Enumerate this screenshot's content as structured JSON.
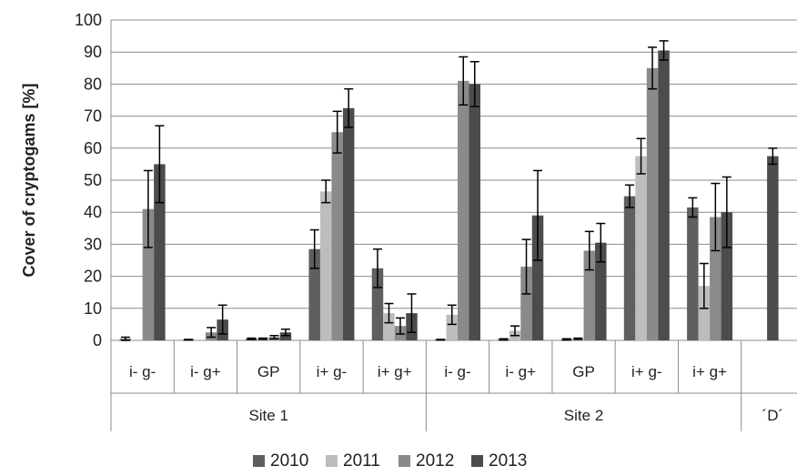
{
  "chart_data": {
    "type": "bar",
    "ylabel": "Cover of cryptogams [%]",
    "xlabel": "",
    "ylim": [
      0,
      100
    ],
    "yticks": [
      0,
      10,
      20,
      30,
      40,
      50,
      60,
      70,
      80,
      90,
      100
    ],
    "grid": true,
    "legend_position": "bottom",
    "categories": [
      "i- g-",
      "i- g+",
      "GP",
      "i+ g-",
      "i+ g+",
      "i- g-",
      "i- g+",
      "GP",
      "i+ g-",
      "i+ g+",
      ""
    ],
    "groups": [
      {
        "label": "Site 1",
        "span": [
          0,
          4
        ]
      },
      {
        "label": "Site 2",
        "span": [
          5,
          9
        ]
      },
      {
        "label": "´D´",
        "span": [
          10,
          10
        ]
      }
    ],
    "series": [
      {
        "name": "2010",
        "color": "#5f5f5f",
        "values": [
          0.5,
          0.2,
          0.5,
          28.5,
          22.5,
          0.2,
          0.3,
          0.3,
          45,
          41.5,
          null
        ],
        "errors": [
          0.5,
          0.1,
          0.2,
          6,
          6,
          0.1,
          0.2,
          0.2,
          3.5,
          3,
          null
        ]
      },
      {
        "name": "2011",
        "color": "#bdbdbd",
        "values": [
          0,
          0,
          0.5,
          46.5,
          8.5,
          8,
          3,
          0.5,
          57.5,
          17,
          null
        ],
        "errors": [
          0,
          0,
          0.2,
          3.5,
          3,
          3,
          1.5,
          0.2,
          5.5,
          7,
          null
        ]
      },
      {
        "name": "2012",
        "color": "#8a8a8a",
        "values": [
          41,
          2.5,
          1,
          65,
          4.5,
          81,
          23,
          28,
          85,
          38.5,
          null
        ],
        "errors": [
          12,
          1.5,
          0.5,
          6.5,
          2.5,
          7.5,
          8.5,
          6,
          6.5,
          10.5,
          null
        ]
      },
      {
        "name": "2013",
        "color": "#4c4c4c",
        "values": [
          55,
          6.5,
          2.5,
          72.5,
          8.5,
          80,
          39,
          30.5,
          90.5,
          40,
          57.5
        ],
        "errors": [
          12,
          4.5,
          1,
          6,
          6,
          7,
          14,
          6,
          3,
          11,
          2.5
        ]
      }
    ]
  }
}
